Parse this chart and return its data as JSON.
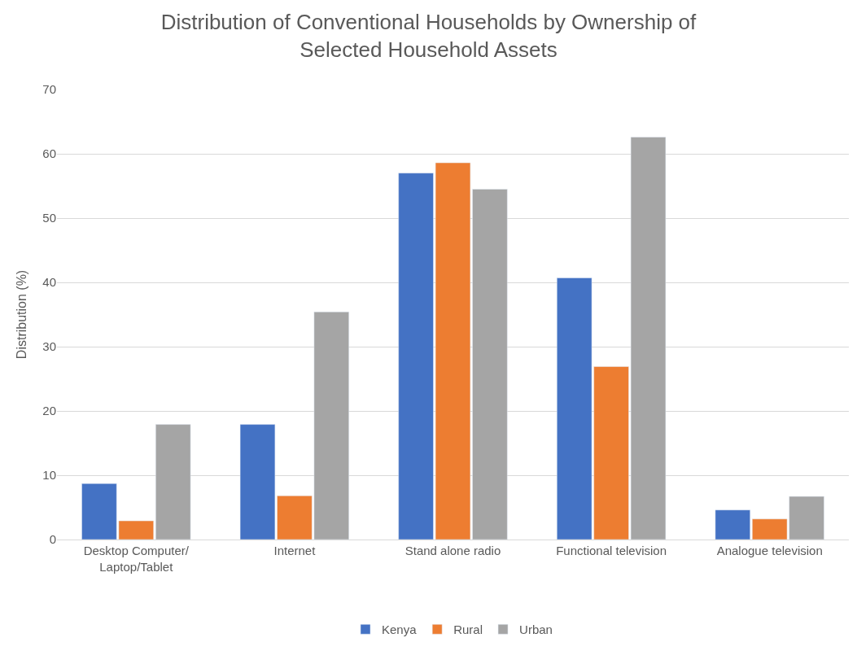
{
  "chart_data": {
    "type": "bar",
    "title": "Distribution of Conventional Households by Ownership of Selected Household Assets",
    "ylabel": "Distribution (%)",
    "categories": [
      "Desktop Computer/\nLaptop/Tablet",
      "Internet",
      "Stand alone radio",
      "Functional television",
      "Analogue television"
    ],
    "series": [
      {
        "name": "Kenya",
        "color": "#4472c4",
        "values": [
          8.7,
          17.9,
          57.0,
          40.7,
          4.6
        ]
      },
      {
        "name": "Rural",
        "color": "#ed7d31",
        "values": [
          2.9,
          6.8,
          58.6,
          26.9,
          3.2
        ]
      },
      {
        "name": "Urban",
        "color": "#a5a5a5",
        "values": [
          17.9,
          35.4,
          54.5,
          62.6,
          6.7
        ]
      }
    ],
    "ylim": [
      0,
      70
    ],
    "yticks": [
      0,
      10,
      20,
      30,
      40,
      50,
      60,
      70
    ],
    "grid": "y",
    "legend": "bottom"
  }
}
